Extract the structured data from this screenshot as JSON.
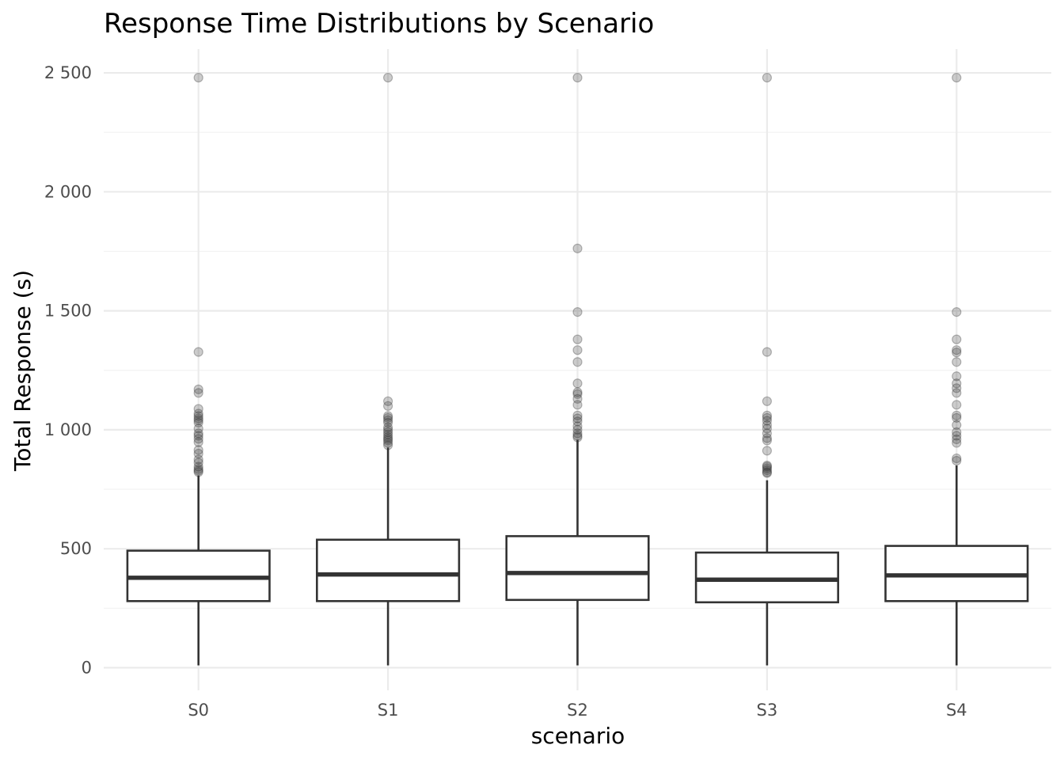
{
  "chart_data": {
    "type": "boxplot",
    "title": "Response Time Distributions by Scenario",
    "xlabel": "scenario",
    "ylabel": "Total Response (s)",
    "ylim": [
      -95,
      2600
    ],
    "y_ticks": [
      0,
      500,
      1000,
      1500,
      2000,
      2500
    ],
    "y_tick_labels": [
      "0",
      "500",
      "1 000",
      "1 500",
      "2 000",
      "2 500"
    ],
    "grid": true,
    "legend": "none",
    "categories": [
      "S0",
      "S1",
      "S2",
      "S3",
      "S4"
    ],
    "boxes": [
      {
        "name": "S0",
        "whisker_low": 10,
        "q1": 280,
        "median": 378,
        "q3": 492,
        "whisker_high": 808,
        "outliers": [
          2480,
          1327,
          1170,
          1155,
          1088,
          1068,
          1058,
          1048,
          1040,
          1030,
          1005,
          985,
          975,
          962,
          948,
          915,
          900,
          875,
          862,
          845,
          835,
          828,
          822
        ]
      },
      {
        "name": "S1",
        "whisker_low": 10,
        "q1": 280,
        "median": 392,
        "q3": 538,
        "whisker_high": 925,
        "outliers": [
          2480,
          1120,
          1100,
          1058,
          1050,
          1040,
          1030,
          1010,
          1000,
          990,
          980,
          970,
          962,
          955,
          945,
          935
        ]
      },
      {
        "name": "S2",
        "whisker_low": 10,
        "q1": 285,
        "median": 398,
        "q3": 553,
        "whisker_high": 958,
        "outliers": [
          2480,
          1762,
          1495,
          1380,
          1335,
          1285,
          1195,
          1158,
          1150,
          1130,
          1105,
          1060,
          1048,
          1035,
          1015,
          1000,
          985,
          975,
          968
        ]
      },
      {
        "name": "S3",
        "whisker_low": 10,
        "q1": 275,
        "median": 370,
        "q3": 484,
        "whisker_high": 788,
        "outliers": [
          2480,
          1327,
          1120,
          1060,
          1050,
          1038,
          1020,
          1005,
          985,
          965,
          955,
          912,
          850,
          845,
          838,
          830,
          822,
          818
        ]
      },
      {
        "name": "S4",
        "whisker_low": 10,
        "q1": 280,
        "median": 388,
        "q3": 512,
        "whisker_high": 850,
        "outliers": [
          2480,
          1495,
          1380,
          1335,
          1325,
          1285,
          1225,
          1195,
          1175,
          1155,
          1105,
          1060,
          1050,
          1020,
          990,
          975,
          960,
          945,
          880,
          870
        ]
      }
    ]
  }
}
